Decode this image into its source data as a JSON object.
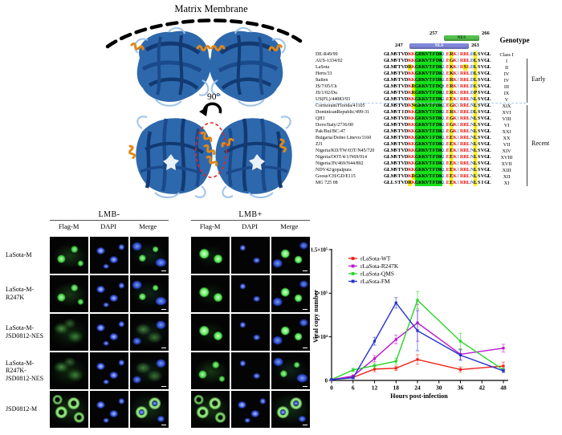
{
  "panel_a": {
    "membrane_label": "Matrix Membrane",
    "rotation_label": "90°"
  },
  "alignment": {
    "genotype_header": "Genotype",
    "nls": {
      "label": "NLS",
      "start": "247",
      "end": "263"
    },
    "nes": {
      "label": "NES",
      "start": "257",
      "end": "266"
    },
    "groups": {
      "early": "Early",
      "recent": "Recent"
    },
    "rows": [
      {
        "name": "DE-R49/99",
        "seq": "GLMSTVDKKGRKVTFDKLERKIRRLDLSVGL",
        "genotype": "Class I",
        "group": "none"
      },
      {
        "name": "AUS-1334/02",
        "seq": "GLMSTVDKKGKKVTFDKLEGKIRRLDLSVGL",
        "genotype": "I",
        "group": "early"
      },
      {
        "name": "LaSota",
        "seq": "GLMTTVDRKGKKVTFDKLEKKIRSLDLSVGL",
        "genotype": "II",
        "group": "early"
      },
      {
        "name": "Herts/33",
        "seq": "GLMSTVDKKGKKVTFDKLEKKIRRLDLSVGL",
        "genotype": "IV",
        "group": "early"
      },
      {
        "name": "Italien",
        "seq": "GLMSTVDKKGRKVTFDKLERKIRRLDLSVGL",
        "genotype": "IV",
        "group": "early"
      },
      {
        "name": "JS/7/05/Ch",
        "seq": "GLMSTVDKRGKKVTFDQLERKIRRLDLSVGL",
        "genotype": "III",
        "group": "early"
      },
      {
        "name": "JS/1/02/Du",
        "seq": "GLMSTVDKRGRKVTFDKLERKIRRLDPSVGL",
        "genotype": "IX",
        "group": "early"
      },
      {
        "name": "US(FL)/44083/93",
        "seq": "GLMSTVDKKGKKVTFDKLEEKIRRLNLSVGL",
        "genotype": "V",
        "group": "early"
      },
      {
        "name": "Cormorant/Florida/41105",
        "seq": "GLMSTVDKNGKKVTFDKLEGKIRRLNLSVGL",
        "genotype": "XIX",
        "group": "recent"
      },
      {
        "name": "DominicanRepublic/499-31",
        "seq": "GLMSTIDKKGRKVTFDKLERKIRRLDLSVGL",
        "genotype": "XVI",
        "group": "recent"
      },
      {
        "name": "QH1",
        "seq": "GLMSTVDKKGKKVSFDKLEGKIRRLNLSVGL",
        "genotype": "VIII",
        "group": "recent"
      },
      {
        "name": "Dove/Italy/2736/00",
        "seq": "GLMSTVDKKGKKVTFDKLEGKIRRLNLSVGL",
        "genotype": "VI",
        "group": "recent"
      },
      {
        "name": "Pak/Bul/BC-47",
        "seq": "GLMSTVDKKGKKVTFDKLEGKIRRLNLSVGL",
        "genotype": "XXI",
        "group": "recent"
      },
      {
        "name": "Bulgaria/Dolno Linevo/1160",
        "seq": "GLMSTVDKKGKKVIFDKLEEKIRRLNLSVGL",
        "genotype": "XX",
        "group": "recent"
      },
      {
        "name": "ZJ1",
        "seq": "GLMSTVDKKGKKVTFDKLEEKIRRLNLSVGL",
        "genotype": "VII",
        "group": "recent"
      },
      {
        "name": "Nigeria/KD/TW/03T/N45/720",
        "seq": "GLMSTVDKKGRKVTFDKLEEKIRRLNLSVGL",
        "genotype": "XIV",
        "group": "recent"
      },
      {
        "name": "Nigeria/OOT/4/1/N69/914",
        "seq": "GLMSTVDKKGKKVTFDKLEEKIRRLNLSVGL",
        "genotype": "XVIII",
        "group": "recent"
      },
      {
        "name": "Nigeria/JN/469/N44/892",
        "seq": "GLMSTVDKKGKKVTFDKLEEKIRRLNLSVGL",
        "genotype": "XVII",
        "group": "recent"
      },
      {
        "name": "NDV42/gopalpura",
        "seq": "GLMSTVDKKGKKVTFDKLEEKIRRLNLSVGL",
        "genotype": "XIII",
        "group": "recent"
      },
      {
        "name": "Goose/CH/GD/E115",
        "seq": "GLMSTVDKRGKKVTFDKLEEKIRRLNLSVGL",
        "genotype": "XII",
        "group": "recent"
      },
      {
        "name": "MG 725 08",
        "seq": "GLLSTVDRKGKKVTFDKLEEKIRRLNLSIGL",
        "genotype": "XI",
        "group": "recent"
      }
    ]
  },
  "microscopy": {
    "groups": [
      {
        "label": "LMB-"
      },
      {
        "label": "LMB+"
      }
    ],
    "channels": [
      "Flag-M",
      "DAPI",
      "Merge"
    ],
    "rows": [
      {
        "label": "LaSota-M",
        "label2": "",
        "cells": [
          "green-nuclear",
          "dapi",
          "merge-nuclear",
          "green-bright",
          "dapi-sparse",
          "merge-bright"
        ]
      },
      {
        "label": "LaSota-M-R247K",
        "label2": "",
        "cells": [
          "green-nuclear",
          "dapi",
          "merge-nuclear",
          "green-bright",
          "dapi-sparse",
          "merge-bright"
        ]
      },
      {
        "label": "LaSota-M-",
        "label2": "JSD0812-NES",
        "cells": [
          "green-diffuse",
          "dapi",
          "merge-diffuse",
          "green-bright",
          "dapi-sparse",
          "merge-bright"
        ]
      },
      {
        "label": "LaSota-M-R247K-",
        "label2": "JSD0812-NES",
        "cells": [
          "green-diffuse",
          "dapi",
          "merge-diffuse",
          "green-nuclear",
          "dapi-sparse",
          "merge-nuclear"
        ]
      },
      {
        "label": "JSD0812-M",
        "label2": "",
        "cells": [
          "green-ring",
          "dapi",
          "merge-ring",
          "green-ring",
          "dapi",
          "merge-ring"
        ]
      }
    ]
  },
  "chart_data": {
    "type": "line",
    "title": "",
    "xlabel": "Hours post-infection",
    "ylabel": "Viral copy number",
    "x": [
      0,
      6,
      12,
      18,
      24,
      36,
      48
    ],
    "x_ticks": [
      0,
      6,
      12,
      18,
      24,
      30,
      36,
      42,
      48
    ],
    "xlim": [
      0,
      48
    ],
    "y_unit_multiplier": 10000,
    "ylim": [
      0,
      15
    ],
    "y_ticks": [
      {
        "v": 0,
        "label": "0"
      },
      {
        "v": 5,
        "label": "5×10⁴"
      },
      {
        "v": 10,
        "label": "1×10⁵"
      },
      {
        "v": 15,
        "label": "1.5×10⁵"
      }
    ],
    "legend_position": "top-left",
    "series": [
      {
        "name": "rLaSota-WT",
        "color": "#ef2017",
        "values": [
          0.1,
          0.35,
          1.3,
          1.4,
          2.4,
          1.25,
          1.65
        ],
        "errors": [
          0.05,
          0.12,
          0.3,
          0.25,
          0.55,
          0.3,
          0.45
        ]
      },
      {
        "name": "rLaSota-R247K",
        "color": "#bb18cc",
        "values": [
          0.1,
          0.5,
          2.5,
          4.7,
          6.6,
          3.0,
          3.7
        ],
        "errors": [
          0.05,
          0.15,
          0.35,
          0.5,
          2.1,
          0.6,
          0.45
        ]
      },
      {
        "name": "rLaSota-QMS",
        "color": "#28d428",
        "values": [
          0.1,
          1.2,
          1.7,
          2.2,
          9.2,
          4.5,
          1.2
        ],
        "errors": [
          0.05,
          0.2,
          0.3,
          0.35,
          1.0,
          0.9,
          0.2
        ]
      },
      {
        "name": "rLaSota-FM",
        "color": "#2430cf",
        "values": [
          0.1,
          0.3,
          4.5,
          8.9,
          5.7,
          2.9,
          1.1
        ],
        "errors": [
          0.05,
          0.1,
          0.45,
          0.6,
          2.3,
          0.6,
          0.2
        ]
      }
    ]
  }
}
